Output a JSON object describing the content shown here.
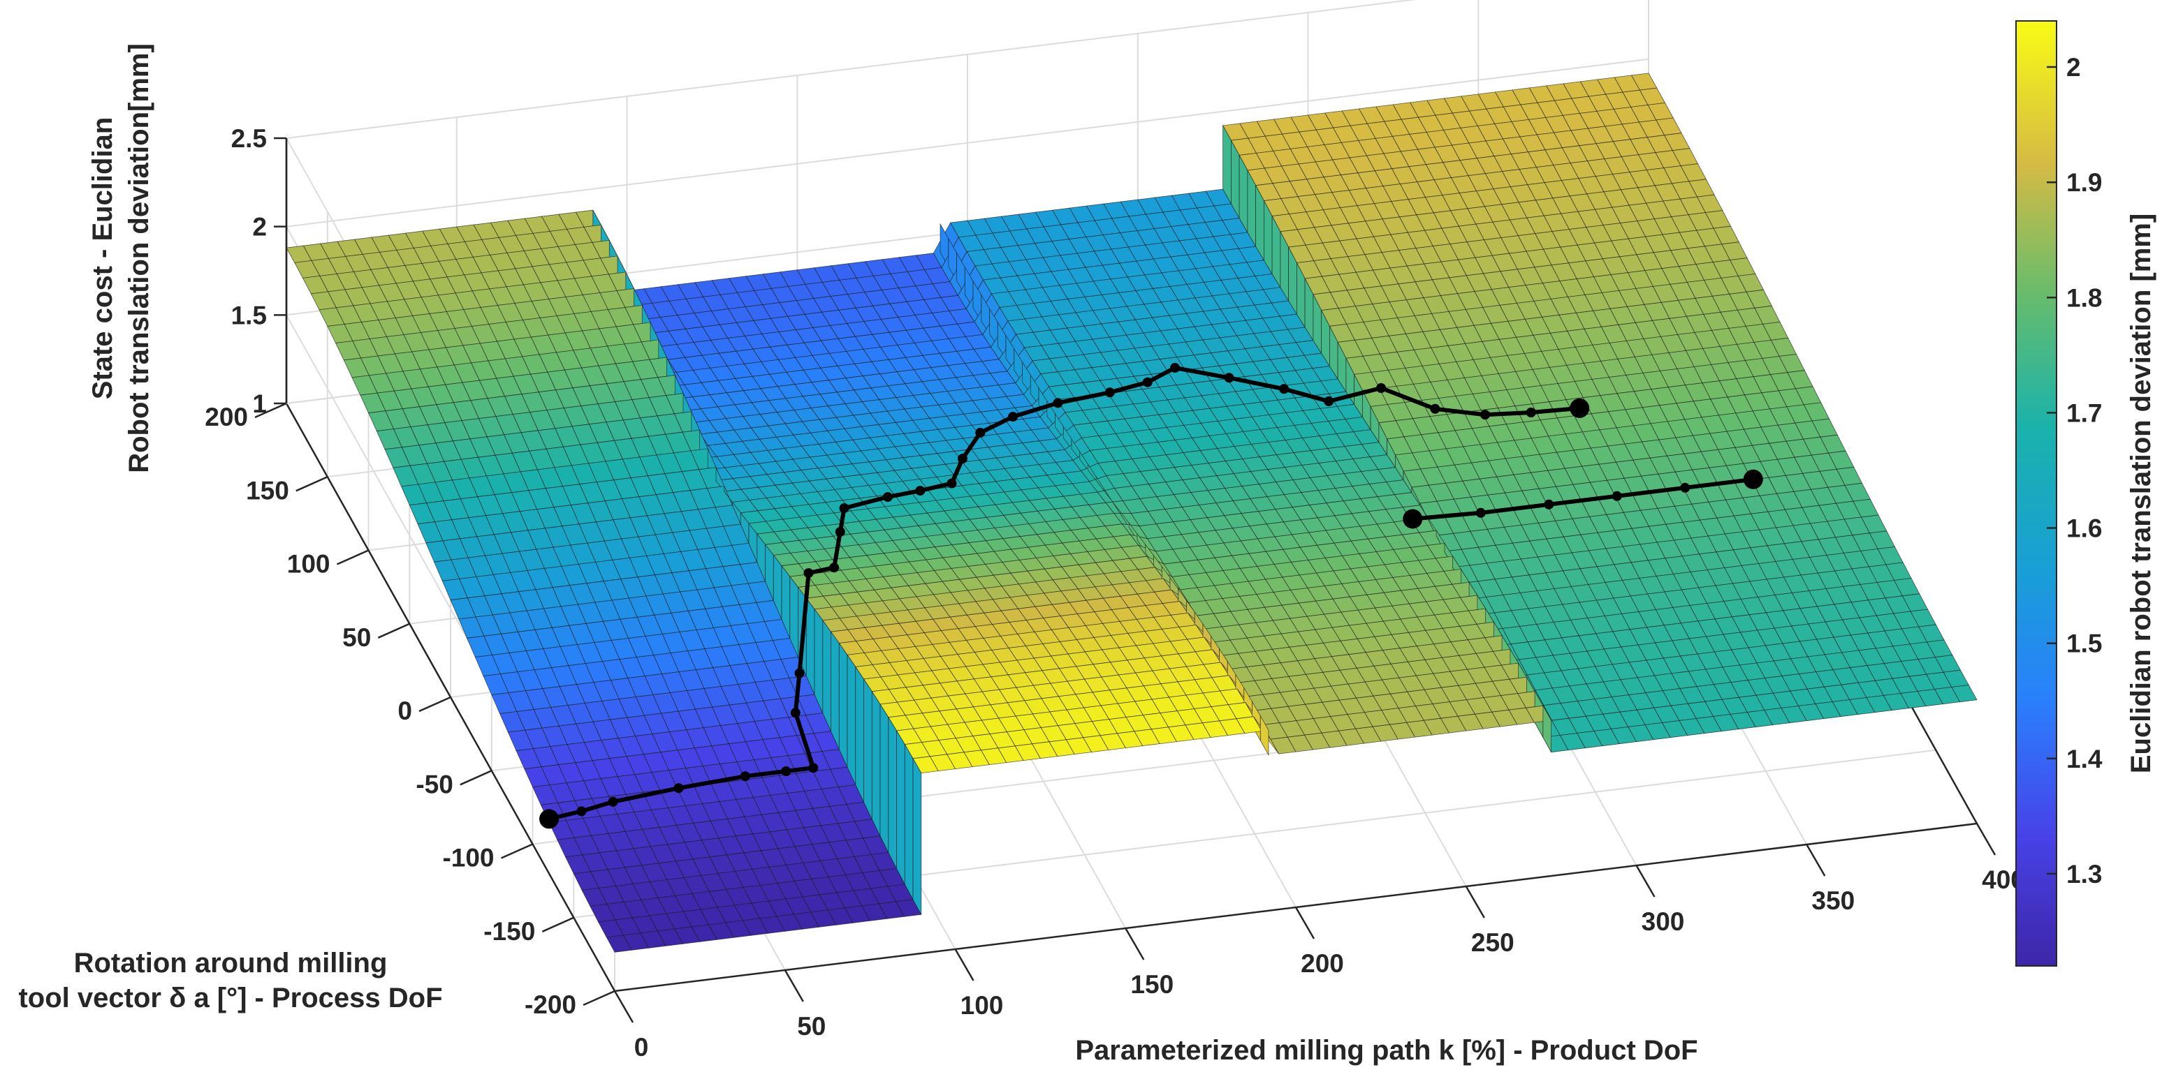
{
  "chart_data": {
    "type": "surface",
    "xlabel": "Parameterized milling path k [%] - Product DoF",
    "ylabel_lines": [
      "Rotation around milling",
      "tool vector δ a [°] - Process DoF"
    ],
    "zlabel_lines": [
      "State cost - Euclidian",
      "Robot translation deviation[mm]"
    ],
    "colorbar_label": "Euclidian robot translation deviation [mm]",
    "xlim": [
      0,
      400
    ],
    "ylim": [
      -200,
      200
    ],
    "zlim": [
      1,
      2.5
    ],
    "clim": [
      1.22,
      2.04
    ],
    "x_ticks": [
      0,
      50,
      100,
      150,
      200,
      250,
      300,
      350,
      400
    ],
    "y_ticks": [
      -200,
      -150,
      -100,
      -50,
      0,
      50,
      100,
      150,
      200
    ],
    "z_ticks": [
      1,
      1.5,
      2,
      2.5
    ],
    "colorbar_ticks": [
      1.3,
      1.4,
      1.5,
      1.6,
      1.7,
      1.8,
      1.9,
      2
    ],
    "tick_labels": {
      "x": [
        "0",
        "50",
        "100",
        "150",
        "200",
        "250",
        "300",
        "350",
        "400"
      ],
      "y": [
        "-200",
        "-150",
        "-100",
        "-50",
        "0",
        "50",
        "100",
        "150",
        "200"
      ],
      "z": [
        "1",
        "1.5",
        "2",
        "2.5"
      ],
      "colorbar": [
        "1.3",
        "1.4",
        "1.5",
        "1.6",
        "1.7",
        "1.8",
        "1.9",
        "2"
      ]
    },
    "colormap": "parula",
    "grid": true,
    "segments": [
      {
        "x_range": [
          0,
          90
        ],
        "z_at_y_min": 1.22,
        "z_at_y_max": 1.88
      },
      {
        "x_range": [
          90,
          192
        ],
        "z_at_y_min": 2.02,
        "z_at_y_max": 1.4
      },
      {
        "x_range": [
          192,
          275
        ],
        "z_at_y_min": 1.88,
        "z_at_y_max": 1.56
      },
      {
        "x_range": [
          275,
          400
        ],
        "z_at_y_min": 1.7,
        "z_at_y_max": 1.92
      }
    ],
    "series": [
      {
        "x": [
          0,
          10,
          20,
          40,
          60,
          72,
          80,
          82,
          88,
          95,
          103,
          112,
          118,
          132,
          142,
          152,
          160,
          170,
          182,
          194,
          210,
          222,
          232,
          245,
          258,
          268,
          280,
          292,
          305,
          318,
          332
        ],
        "y": [
          -120,
          -118,
          -115,
          -112,
          -110,
          -110,
          -110,
          -80,
          -60,
          -42,
          -40,
          -10,
          10,
          15,
          17,
          20,
          40,
          60,
          70,
          65,
          68,
          72,
          80,
          68,
          55,
          42,
          28,
          12,
          5,
          3,
          2
        ]
      },
      {
        "x": [
          270,
          290,
          310,
          330,
          350,
          370
        ],
        "y": [
          -52,
          -52,
          -52,
          -52,
          -52,
          -52
        ]
      }
    ]
  }
}
